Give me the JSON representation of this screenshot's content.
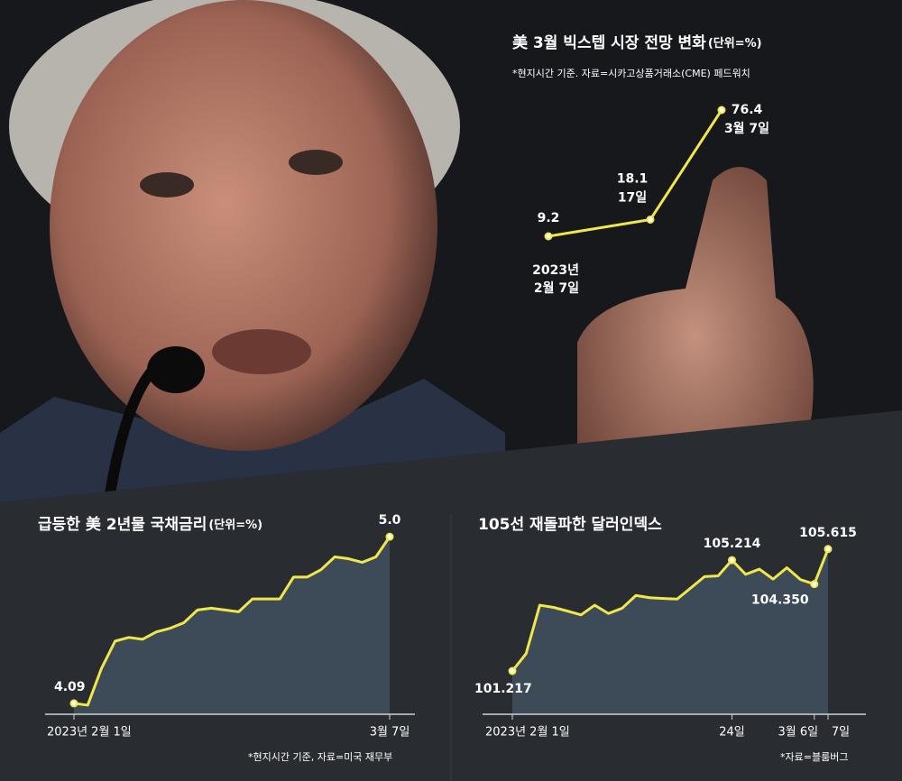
{
  "chart_data": [
    {
      "type": "line",
      "title": "美 3월 빅스텝 시장 전망 변화",
      "unit": "(단위=%)",
      "note": "*현지시간 기준.  자료=시카고상품거래소(CME) 페드워치",
      "categories": [
        "2023년 2월 7일",
        "17일",
        "3월 7일"
      ],
      "values": [
        9.2,
        18.1,
        76.4
      ],
      "color": "#f1e64a",
      "ylim": [
        0,
        90
      ]
    },
    {
      "type": "area",
      "title": "급등한 美 2년물 국채금리",
      "unit": "(단위=%)",
      "note": "*현지시간 기준, 자료=미국 재무부",
      "categories": [
        "2023년 2월 1일",
        null,
        null,
        null,
        null,
        null,
        null,
        null,
        null,
        null,
        null,
        null,
        null,
        null,
        null,
        null,
        null,
        null,
        null,
        null,
        null,
        null,
        null,
        "3월 7일"
      ],
      "values": [
        4.09,
        4.08,
        4.28,
        4.43,
        4.45,
        4.44,
        4.48,
        4.5,
        4.53,
        4.6,
        4.61,
        4.6,
        4.59,
        4.66,
        4.66,
        4.66,
        4.78,
        4.78,
        4.82,
        4.89,
        4.88,
        4.86,
        4.89,
        5.0
      ],
      "value_labels": [
        "4.09",
        null,
        null,
        null,
        null,
        null,
        null,
        null,
        null,
        null,
        null,
        null,
        null,
        null,
        null,
        null,
        null,
        null,
        null,
        null,
        null,
        null,
        null,
        "5.0"
      ],
      "color": "#f1e64a",
      "ylim": [
        4.06,
        5.05
      ]
    },
    {
      "type": "area",
      "title": "105선 재돌파한 달러인덱스",
      "note": "*자료=블룸버그",
      "categories": [
        "2023년 2월 1일",
        null,
        null,
        null,
        null,
        null,
        null,
        null,
        null,
        null,
        null,
        null,
        null,
        null,
        null,
        null,
        "24일",
        null,
        null,
        null,
        null,
        null,
        "3월 6일",
        "7일"
      ],
      "values": [
        101.217,
        101.84,
        103.59,
        103.51,
        103.38,
        103.24,
        103.59,
        103.29,
        103.48,
        103.94,
        103.86,
        103.83,
        103.81,
        104.21,
        104.62,
        104.65,
        105.214,
        104.7,
        104.89,
        104.53,
        104.94,
        104.51,
        104.35,
        105.615
      ],
      "value_labels": [
        "101.217",
        null,
        null,
        null,
        null,
        null,
        null,
        null,
        null,
        null,
        null,
        null,
        null,
        null,
        null,
        null,
        "105.214",
        null,
        null,
        null,
        null,
        null,
        "104.350",
        "105.615"
      ],
      "color": "#f1e64a",
      "ylim": [
        100.6,
        105.9
      ]
    }
  ]
}
